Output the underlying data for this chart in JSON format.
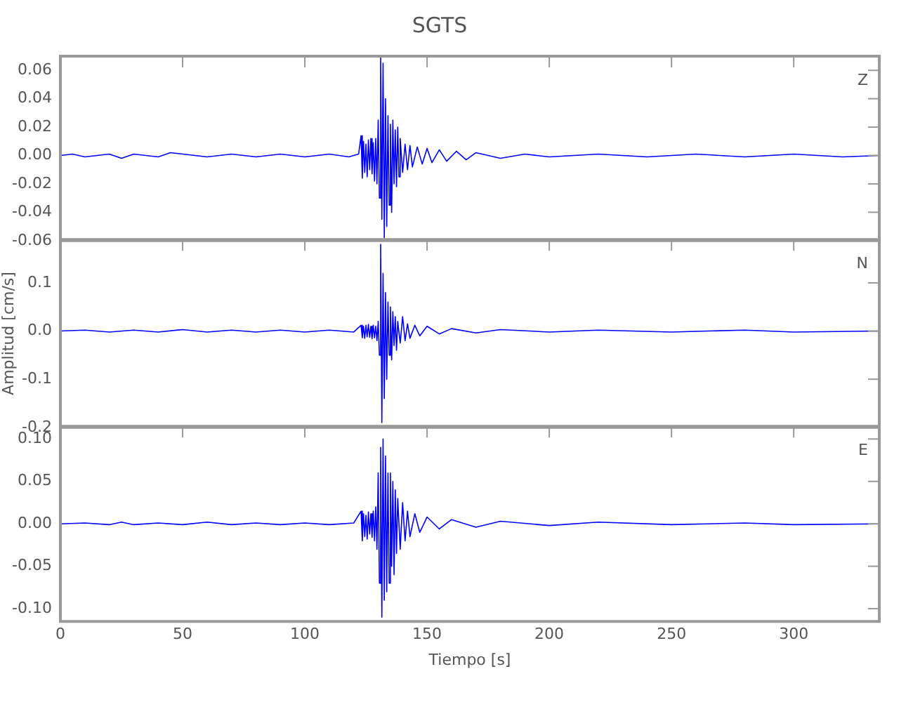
{
  "chart_data": [
    {
      "type": "line",
      "title": "SGTS",
      "annotations": [
        "Z"
      ],
      "tick_labels": "y",
      "grid": false,
      "legend": false,
      "marker": "none",
      "line_style": "solid",
      "xlim": [
        0,
        335
      ],
      "xticks": [
        0,
        50,
        100,
        150,
        200,
        250,
        300
      ],
      "ylim": [
        -0.06,
        0.07
      ],
      "yticks": [
        {
          "value": -0.06,
          "label": "-0.06"
        },
        {
          "value": -0.04,
          "label": "-0.04"
        },
        {
          "value": -0.02,
          "label": "-0.02"
        },
        {
          "value": 0,
          "label": "0.00"
        },
        0.02,
        0.04,
        0.06
      ],
      "series": [
        {
          "color": "#0000ff",
          "x": [
            0,
            5,
            10,
            20,
            25,
            30,
            40,
            45,
            60,
            70,
            80,
            90,
            100,
            110,
            118,
            122,
            123,
            123.5,
            124,
            124.5,
            125,
            125.5,
            126,
            126.5,
            127,
            127.5,
            128,
            128.5,
            129,
            129.5,
            130,
            130.5,
            131,
            131.5,
            132,
            132.5,
            133,
            133.5,
            134,
            134.5,
            135,
            135.5,
            136,
            136.5,
            137,
            137.5,
            138,
            138.5,
            139,
            140,
            141,
            142,
            143,
            144,
            146,
            148,
            150,
            152,
            155,
            158,
            162,
            166,
            170,
            180,
            190,
            200,
            220,
            240,
            260,
            280,
            300,
            320,
            335
          ],
          "values": [
            0,
            0.001,
            -0.001,
            0.001,
            -0.002,
            0.001,
            -0.001,
            0.002,
            -0.001,
            0.001,
            -0.001,
            0.001,
            -0.001,
            0.001,
            -0.001,
            0.001,
            0.014,
            -0.016,
            0.01,
            -0.012,
            0.008,
            -0.015,
            0.011,
            -0.01,
            0.012,
            -0.013,
            0.009,
            -0.018,
            0.012,
            -0.02,
            0.025,
            -0.03,
            0.07,
            -0.045,
            0.065,
            -0.058,
            0.04,
            -0.05,
            0.028,
            -0.035,
            0.022,
            -0.04,
            0.025,
            -0.02,
            0.018,
            -0.022,
            0.02,
            -0.015,
            0.012,
            -0.012,
            0.008,
            -0.01,
            0.007,
            -0.008,
            0.006,
            -0.006,
            0.005,
            -0.005,
            0.004,
            -0.004,
            0.003,
            -0.003,
            0.002,
            -0.002,
            0.001,
            -0.001,
            0.001,
            -0.001,
            0.001,
            -0.001,
            0.001,
            -0.001,
            0
          ]
        }
      ]
    },
    {
      "type": "line",
      "ylabel": "Amplitud [cm/s]",
      "annotations": [
        "N"
      ],
      "tick_labels": "y",
      "grid": false,
      "legend": false,
      "marker": "none",
      "line_style": "solid",
      "xlim": [
        0,
        335
      ],
      "xticks": [
        0,
        50,
        100,
        150,
        200,
        250,
        300
      ],
      "ylim": [
        -0.2,
        0.19
      ],
      "yticks": [
        -0.2,
        -0.1,
        {
          "value": 0,
          "label": "0.0"
        },
        0.1
      ],
      "series": [
        {
          "color": "#0000ff",
          "x": [
            0,
            10,
            20,
            30,
            40,
            50,
            60,
            70,
            80,
            90,
            100,
            110,
            120,
            123,
            123.5,
            124,
            124.5,
            125,
            125.5,
            126,
            126.5,
            127,
            127.5,
            128,
            128.5,
            129,
            129.5,
            130,
            130.5,
            131,
            131.5,
            132,
            132.5,
            133,
            133.5,
            134,
            134.5,
            135,
            135.5,
            136,
            136.5,
            137,
            137.5,
            138,
            139,
            140,
            141,
            142,
            143,
            145,
            147,
            150,
            155,
            160,
            170,
            180,
            200,
            220,
            250,
            280,
            300,
            335
          ],
          "values": [
            0,
            0.002,
            -0.002,
            0.002,
            -0.002,
            0.003,
            -0.002,
            0.002,
            -0.002,
            0.002,
            -0.002,
            0.002,
            -0.002,
            0.012,
            -0.014,
            0.01,
            -0.015,
            0.012,
            -0.012,
            0.014,
            -0.013,
            0.01,
            -0.016,
            0.012,
            -0.014,
            0.01,
            -0.02,
            0.02,
            -0.05,
            0.18,
            -0.19,
            0.12,
            -0.14,
            0.08,
            -0.1,
            0.06,
            -0.05,
            0.05,
            -0.06,
            0.04,
            -0.03,
            0.03,
            -0.04,
            0.02,
            -0.025,
            0.03,
            -0.02,
            0.015,
            -0.015,
            0.012,
            -0.01,
            0.01,
            -0.006,
            0.005,
            -0.004,
            0.003,
            -0.002,
            0.002,
            -0.002,
            0.002,
            -0.002,
            0
          ]
        }
      ]
    },
    {
      "type": "line",
      "xlabel": "Tiempo [s]",
      "annotations": [
        "E"
      ],
      "grid": false,
      "legend": false,
      "marker": "none",
      "line_style": "solid",
      "xlim": [
        0,
        335
      ],
      "xticks": [
        0,
        50,
        100,
        150,
        200,
        250,
        300
      ],
      "ylim": [
        -0.115,
        0.115
      ],
      "yticks": [
        {
          "value": -0.1,
          "label": "-0.10"
        },
        -0.05,
        {
          "value": 0,
          "label": "0.00"
        },
        0.05,
        {
          "value": 0.1,
          "label": "0.10"
        }
      ],
      "series": [
        {
          "color": "#0000ff",
          "x": [
            0,
            10,
            20,
            25,
            30,
            40,
            50,
            60,
            70,
            80,
            90,
            100,
            110,
            120,
            123,
            123.5,
            124,
            124.5,
            125,
            125.5,
            126,
            126.5,
            127,
            127.5,
            128,
            128.5,
            129,
            129.5,
            130,
            130.5,
            131,
            131.5,
            132,
            132.5,
            133,
            133.5,
            134,
            134.5,
            135,
            135.5,
            136,
            136.5,
            137,
            137.5,
            138,
            139,
            140,
            141,
            142,
            143,
            145,
            147,
            150,
            155,
            160,
            170,
            180,
            200,
            220,
            250,
            280,
            300,
            335
          ],
          "values": [
            0,
            0.001,
            -0.001,
            0.002,
            -0.001,
            0.001,
            -0.001,
            0.002,
            -0.001,
            0.001,
            -0.001,
            0.001,
            -0.001,
            0.001,
            0.015,
            -0.02,
            0.012,
            -0.015,
            0.01,
            -0.018,
            0.014,
            -0.012,
            0.012,
            -0.016,
            0.015,
            -0.02,
            0.02,
            -0.03,
            0.06,
            -0.07,
            0.09,
            -0.11,
            0.1,
            -0.09,
            0.08,
            -0.08,
            0.06,
            -0.07,
            0.06,
            -0.05,
            0.05,
            -0.06,
            0.04,
            -0.035,
            0.03,
            -0.03,
            0.025,
            -0.02,
            0.015,
            -0.015,
            0.012,
            -0.01,
            0.008,
            -0.006,
            0.005,
            -0.004,
            0.003,
            -0.002,
            0.002,
            -0.001,
            0.001,
            -0.001,
            0
          ]
        }
      ]
    }
  ]
}
